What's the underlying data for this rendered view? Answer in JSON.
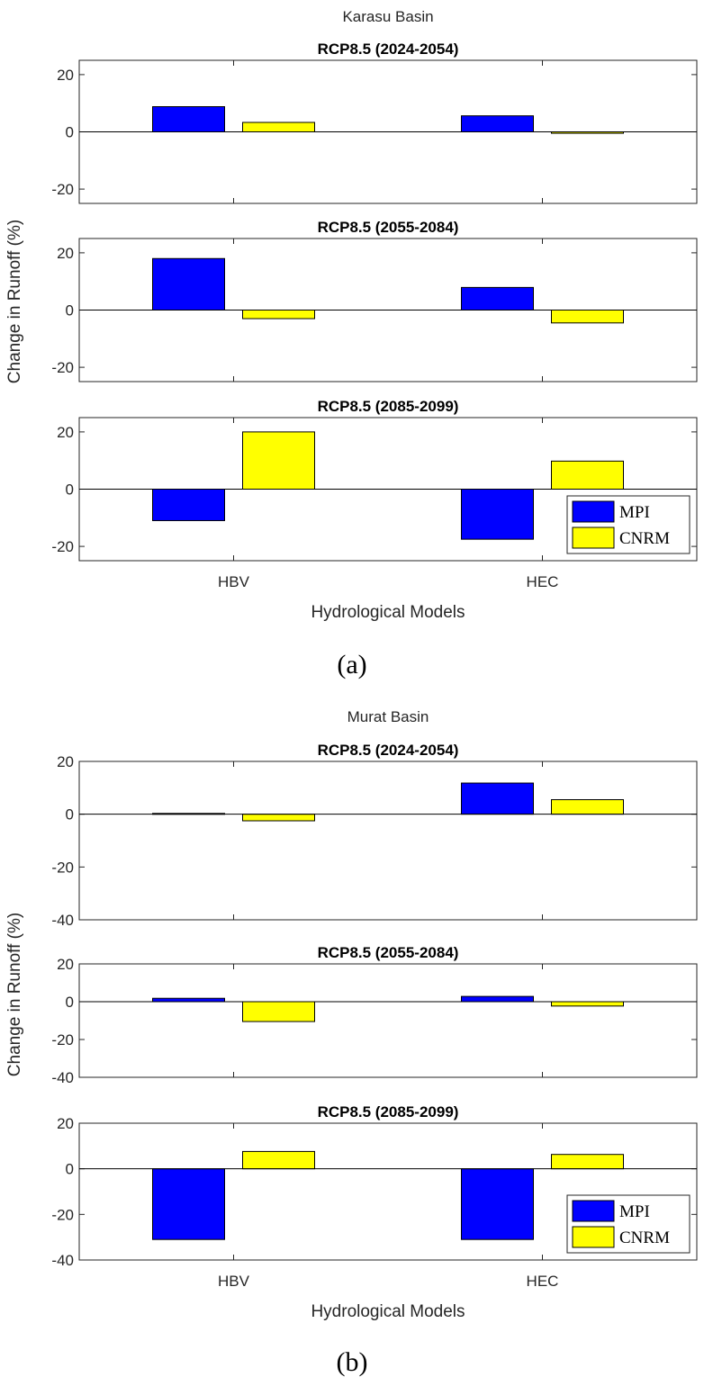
{
  "chart_data": [
    {
      "type": "bar",
      "panel_label": "(a)",
      "suptitle": "Karasu Basin",
      "ylabel": "Change in Runoff (%)",
      "xlabel": "Hydrological Models",
      "categories": [
        "HBV",
        "HEC"
      ],
      "legend": {
        "placement": "bottom-right",
        "entries": [
          "MPI",
          "CNRM"
        ]
      },
      "grid": false,
      "ylim": [
        -25,
        25
      ],
      "yticks": [
        -20,
        0,
        20
      ],
      "colors": {
        "MPI": "#0000ff",
        "CNRM": "#ffff00"
      },
      "subplots": [
        {
          "title": "RCP8.5  (2024-2054)",
          "series": [
            {
              "name": "MPI",
              "values": [
                8.8,
                5.6
              ]
            },
            {
              "name": "CNRM",
              "values": [
                3.3,
                -0.5
              ]
            }
          ]
        },
        {
          "title": "RCP8.5  (2055-2084)",
          "series": [
            {
              "name": "MPI",
              "values": [
                18.0,
                7.9
              ]
            },
            {
              "name": "CNRM",
              "values": [
                -3.0,
                -4.5
              ]
            }
          ]
        },
        {
          "title": "RCP8.5 (2085-2099)",
          "series": [
            {
              "name": "MPI",
              "values": [
                -11.0,
                -17.5
              ]
            },
            {
              "name": "CNRM",
              "values": [
                20.0,
                9.8
              ]
            }
          ]
        }
      ]
    },
    {
      "type": "bar",
      "panel_label": "(b)",
      "suptitle": "Murat Basin",
      "ylabel": "Change in Runoff (%)",
      "xlabel": "Hydrological Models",
      "categories": [
        "HBV",
        "HEC"
      ],
      "legend": {
        "placement": "bottom-right",
        "entries": [
          "MPI",
          "CNRM"
        ]
      },
      "grid": false,
      "ylim": [
        -40,
        20
      ],
      "yticks": [
        -40,
        -20,
        0,
        20
      ],
      "colors": {
        "MPI": "#0000ff",
        "CNRM": "#ffff00"
      },
      "subplots": [
        {
          "title": "RCP8.5  (2024-2054)",
          "series": [
            {
              "name": "MPI",
              "values": [
                0.3,
                11.8
              ]
            },
            {
              "name": "CNRM",
              "values": [
                -2.5,
                5.5
              ]
            }
          ]
        },
        {
          "title": "RCP8.5  (2055-2084)",
          "series": [
            {
              "name": "MPI",
              "values": [
                1.8,
                2.8
              ]
            },
            {
              "name": "CNRM",
              "values": [
                -10.5,
                -2.3
              ]
            }
          ]
        },
        {
          "title": "RCP8.5 (2085-2099)",
          "series": [
            {
              "name": "MPI",
              "values": [
                -31.0,
                -31.0
              ]
            },
            {
              "name": "CNRM",
              "values": [
                7.6,
                6.3
              ]
            }
          ]
        }
      ]
    }
  ]
}
